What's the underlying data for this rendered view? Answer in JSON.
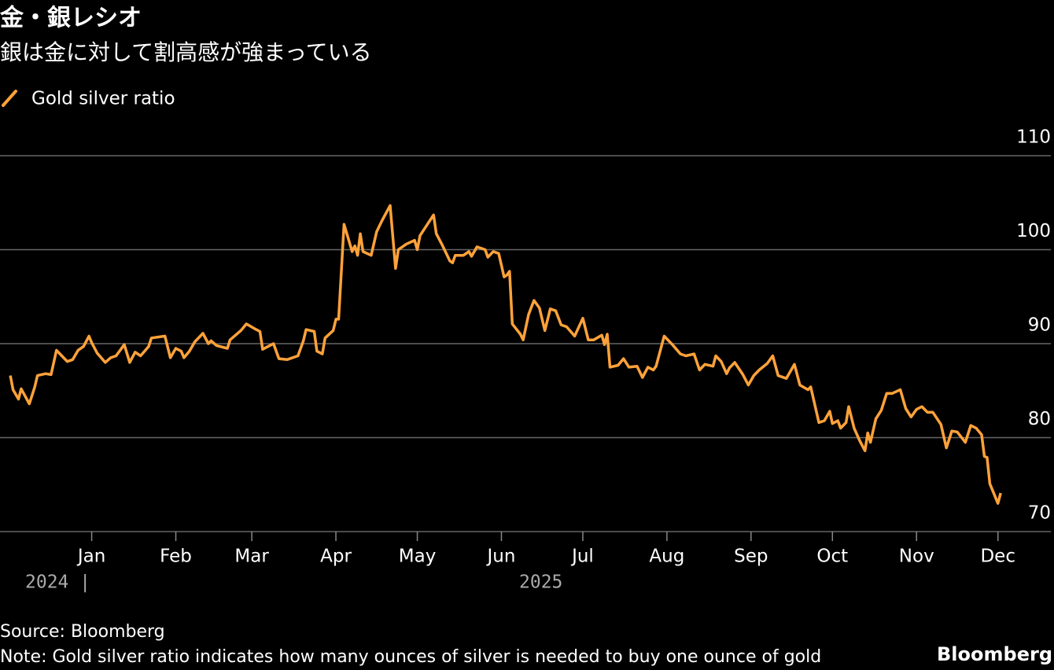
{
  "chart_data": {
    "type": "line",
    "title": "金・銀レシオ",
    "subtitle": "銀は金に対して割高感が強まっている",
    "source": "Source: Bloomberg",
    "note": "Note: Gold silver ratio indicates how many ounces of silver is needed to buy one ounce of gold",
    "brand": "Bloomberg",
    "year_labels": [
      "2024 |",
      "2025"
    ],
    "x": [
      0,
      1,
      3,
      4,
      7,
      9,
      10,
      13,
      15,
      17,
      19,
      21,
      23,
      25,
      27,
      29,
      30,
      32,
      35,
      37,
      39,
      42,
      44,
      46,
      48,
      51,
      52,
      57,
      59,
      61,
      63,
      64,
      66,
      68,
      71,
      73,
      74,
      76,
      80,
      81,
      85,
      87,
      90,
      92,
      93,
      95,
      97,
      99,
      102,
      106,
      108,
      109,
      112,
      113,
      115,
      116,
      119,
      120,
      121,
      123,
      126,
      127,
      128,
      129,
      130,
      133,
      135,
      137,
      140,
      142,
      143,
      146,
      149,
      150,
      151,
      156,
      157,
      159,
      162,
      163,
      164,
      167,
      169,
      170,
      172,
      175,
      176,
      178,
      180,
      182,
      183,
      184,
      185,
      188,
      189,
      191,
      193,
      195,
      197,
      199,
      201,
      203,
      205,
      208,
      211,
      213,
      215,
      218,
      219,
      220,
      221,
      224,
      226,
      228,
      231,
      233,
      235,
      237,
      238,
      241,
      244,
      247,
      249,
      252,
      254,
      256,
      259,
      260,
      262,
      264,
      265,
      267,
      270,
      272,
      274,
      276,
      279,
      281,
      283,
      286,
      289,
      291,
      294,
      295,
      298,
      300,
      302,
      303,
      305,
      306,
      308,
      309,
      311,
      313,
      315,
      316,
      317,
      319,
      321,
      323,
      325,
      328,
      330,
      332,
      334,
      336,
      338,
      340,
      343,
      345,
      347,
      349,
      352,
      354,
      356,
      358,
      359,
      360,
      361,
      364,
      365
    ],
    "series": [
      {
        "name": "Gold silver ratio",
        "color": "#ffa23a",
        "values": [
          86.6,
          85.1,
          84.1,
          85.2,
          83.6,
          85.4,
          86.6,
          86.8,
          86.7,
          89.3,
          88.7,
          88.1,
          88.3,
          89.3,
          89.7,
          90.8,
          90.1,
          89.0,
          88.0,
          88.5,
          88.7,
          89.9,
          88.0,
          89.1,
          88.7,
          89.7,
          90.6,
          90.8,
          88.5,
          89.5,
          89.2,
          88.5,
          89.2,
          90.2,
          91.1,
          90.0,
          90.3,
          89.8,
          89.5,
          90.4,
          91.4,
          92.1,
          91.6,
          91.3,
          89.4,
          89.7,
          90.0,
          88.4,
          88.3,
          88.7,
          90.3,
          91.5,
          91.3,
          89.2,
          88.9,
          90.6,
          91.4,
          92.6,
          92.6,
          102.7,
          99.8,
          100.4,
          99.4,
          101.7,
          99.8,
          99.4,
          101.9,
          103.1,
          104.7,
          98.0,
          100.0,
          100.6,
          101.0,
          100.0,
          101.5,
          103.7,
          101.7,
          100.6,
          98.8,
          98.6,
          99.4,
          99.4,
          99.8,
          99.3,
          100.3,
          100.0,
          99.2,
          99.8,
          99.6,
          97.1,
          97.3,
          97.7,
          92.1,
          91.0,
          90.4,
          93.1,
          94.6,
          93.8,
          91.4,
          93.7,
          93.5,
          92.0,
          91.8,
          90.8,
          92.7,
          90.4,
          90.4,
          90.9,
          89.9,
          91.0,
          87.5,
          87.7,
          88.4,
          87.5,
          87.6,
          86.4,
          87.5,
          87.2,
          87.6,
          90.8,
          89.9,
          88.9,
          88.7,
          88.9,
          87.2,
          87.8,
          87.6,
          88.7,
          88.1,
          86.8,
          87.4,
          88.0,
          86.7,
          85.6,
          86.6,
          87.2,
          87.9,
          88.7,
          86.6,
          86.3,
          87.8,
          85.6,
          85.1,
          85.4,
          81.6,
          81.8,
          82.8,
          81.5,
          81.8,
          81.0,
          81.6,
          83.3,
          81.0,
          79.7,
          78.6,
          80.5,
          79.5,
          82.0,
          82.9,
          84.7,
          84.7,
          85.1,
          83.1,
          82.2,
          83.0,
          83.3,
          82.7,
          82.7,
          81.4,
          78.9,
          80.7,
          80.6,
          79.5,
          81.3,
          81.0,
          80.3,
          78.0,
          77.9,
          75.1,
          73.0,
          74.1
        ]
      }
    ],
    "xlim": [
      -3.8,
      383.5
    ],
    "xticks": [
      {
        "value": 30,
        "label": "Jan"
      },
      {
        "value": 61,
        "label": "Feb"
      },
      {
        "value": 89,
        "label": "Mar"
      },
      {
        "value": 120,
        "label": "Apr"
      },
      {
        "value": 150,
        "label": "May"
      },
      {
        "value": 181,
        "label": "Jun"
      },
      {
        "value": 211,
        "label": "Jul"
      },
      {
        "value": 242,
        "label": "Aug"
      },
      {
        "value": 273,
        "label": "Sep"
      },
      {
        "value": 303,
        "label": "Oct"
      },
      {
        "value": 334,
        "label": "Nov"
      },
      {
        "value": 364,
        "label": "Dec"
      }
    ],
    "ylim": [
      70,
      110
    ],
    "yticks": [
      70,
      80,
      90,
      100,
      110
    ],
    "grid": true
  }
}
